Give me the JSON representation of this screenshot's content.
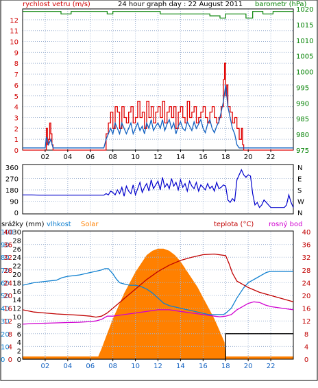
{
  "chart_data": [
    {
      "type": "line",
      "title": "24 hour graph day : 22 August 2011",
      "left_label": "rychlost vetru (m/s)",
      "right_label": "barometr (hPa)",
      "ylim_left": [
        0,
        13
      ],
      "ylim_right": [
        975,
        1020
      ],
      "yticks_left": [
        "0",
        "1",
        "2",
        "3",
        "4",
        "5",
        "6",
        "7",
        "8",
        "9",
        "10",
        "11",
        "12"
      ],
      "yticks_right": [
        "975",
        "980",
        "985",
        "990",
        "995",
        "1000",
        "1005",
        "1010",
        "1015",
        "1020"
      ],
      "x_ticks": [
        "02",
        "04",
        "06",
        "08",
        "10",
        "12",
        "14",
        "16",
        "18",
        "20",
        "22"
      ],
      "series": [
        {
          "color": "#008000",
          "x": [
            0,
            3.2,
            3.4,
            4.1,
            4.3,
            7.4,
            7.5,
            7.9,
            8.0,
            12.0,
            12.2,
            13.0,
            13.2,
            16.4,
            16.6,
            17.3,
            17.5,
            17.8,
            18.0,
            19.7,
            19.8,
            20.2,
            20.4,
            21.1,
            21.3,
            22.0,
            22.2,
            24
          ],
          "y": [
            1019.2,
            1019.2,
            1018.4,
            1018.4,
            1019.2,
            1019.2,
            1018.4,
            1018.4,
            1019.2,
            1019.2,
            1018.4,
            1018.4,
            1018.4,
            1018.4,
            1017.8,
            1017.8,
            1017.1,
            1017.1,
            1018.4,
            1018.4,
            1017.1,
            1017.1,
            1019.2,
            1019.2,
            1018.4,
            1018.4,
            1019.2,
            1019.2
          ]
        },
        {
          "color": "#e00000",
          "x": [
            0,
            2.0,
            2.1,
            2.2,
            2.3,
            2.4,
            2.5,
            2.6,
            2.7,
            7.2,
            7.4,
            7.6,
            7.8,
            8.0,
            8.2,
            8.4,
            8.6,
            8.8,
            9.0,
            9.2,
            9.4,
            9.6,
            9.8,
            10.0,
            10.2,
            10.4,
            10.6,
            10.8,
            11.0,
            11.2,
            11.4,
            11.6,
            11.8,
            12.0,
            12.2,
            12.4,
            12.6,
            12.8,
            13.0,
            13.2,
            13.4,
            13.6,
            13.8,
            14.0,
            14.2,
            14.4,
            14.6,
            14.8,
            15.0,
            15.2,
            15.4,
            15.6,
            15.8,
            16.0,
            16.2,
            16.4,
            16.6,
            16.8,
            17.0,
            17.2,
            17.4,
            17.6,
            17.8,
            17.9,
            18.0,
            18.1,
            18.2,
            18.4,
            18.6,
            18.8,
            19.0,
            19.2,
            19.4,
            19.5,
            19.6,
            24
          ],
          "y": [
            0,
            0,
            2.0,
            0.5,
            1.0,
            2.5,
            1.5,
            0.5,
            0,
            0,
            1.5,
            2.5,
            3.5,
            2.0,
            4.0,
            3.5,
            2.0,
            4.0,
            3.0,
            2.5,
            3.5,
            4.0,
            2.5,
            3.0,
            4.5,
            3.0,
            3.5,
            2.0,
            4.5,
            3.0,
            4.0,
            2.5,
            3.5,
            4.0,
            3.0,
            4.5,
            2.5,
            3.5,
            4.0,
            3.0,
            4.0,
            2.0,
            3.5,
            4.0,
            3.0,
            2.5,
            4.5,
            3.0,
            3.5,
            4.0,
            2.5,
            3.0,
            3.5,
            4.0,
            3.0,
            2.5,
            3.5,
            4.0,
            3.0,
            2.5,
            3.0,
            4.0,
            6.5,
            8.0,
            5.0,
            6.0,
            4.0,
            3.5,
            2.5,
            3.0,
            2.0,
            1.0,
            2.0,
            0.5,
            0,
            0
          ]
        },
        {
          "color": "#1060c0",
          "x": [
            0,
            2.0,
            2.1,
            2.3,
            2.5,
            2.7,
            7.2,
            7.4,
            7.6,
            7.8,
            8.0,
            8.2,
            8.4,
            8.6,
            8.8,
            9.0,
            9.2,
            9.4,
            9.6,
            9.8,
            10.0,
            10.2,
            10.4,
            10.6,
            10.8,
            11.0,
            11.2,
            11.4,
            11.6,
            11.8,
            12.0,
            12.2,
            12.4,
            12.6,
            12.8,
            13.0,
            13.2,
            13.4,
            13.6,
            13.8,
            14.0,
            14.2,
            14.4,
            14.6,
            14.8,
            15.0,
            15.2,
            15.4,
            15.6,
            15.8,
            16.0,
            16.2,
            16.4,
            16.6,
            16.8,
            17.0,
            17.2,
            17.4,
            17.6,
            17.8,
            18.0,
            18.2,
            18.4,
            18.6,
            18.8,
            19.0,
            19.2,
            19.4,
            19.6,
            24
          ],
          "y": [
            0.2,
            0.2,
            1.2,
            0.5,
            1.0,
            0.2,
            0.2,
            1.0,
            1.5,
            2.0,
            1.5,
            2.5,
            2.0,
            1.5,
            2.5,
            2.0,
            1.5,
            2.0,
            2.5,
            1.5,
            2.0,
            2.5,
            1.8,
            2.2,
            1.5,
            2.5,
            2.0,
            2.8,
            1.8,
            2.2,
            2.5,
            2.0,
            2.8,
            1.8,
            2.4,
            2.8,
            2.0,
            2.5,
            1.5,
            2.2,
            2.6,
            2.0,
            1.8,
            2.6,
            2.2,
            1.8,
            2.6,
            2.0,
            2.4,
            2.8,
            2.0,
            1.6,
            2.4,
            2.8,
            2.0,
            1.6,
            2.2,
            2.6,
            3.5,
            4.5,
            6.0,
            4.0,
            3.0,
            2.0,
            1.5,
            0.5,
            0.2,
            0.2,
            0.2,
            0.2
          ]
        }
      ]
    },
    {
      "type": "line",
      "ylim": [
        0,
        360
      ],
      "yticks_left": [
        "0",
        "90",
        "180",
        "270",
        "360"
      ],
      "yticks_right": [
        "N",
        "W",
        "S",
        "E",
        "N"
      ],
      "x_ticks": [
        "02",
        "04",
        "06",
        "08",
        "10",
        "12",
        "14",
        "16",
        "18",
        "20",
        "22"
      ],
      "series": [
        {
          "color": "#0000cc",
          "x": [
            0,
            0.8,
            1.5,
            2.5,
            3.5,
            7.2,
            7.4,
            7.6,
            7.8,
            8.0,
            8.2,
            8.4,
            8.6,
            8.8,
            9.0,
            9.2,
            9.4,
            9.6,
            9.8,
            10.0,
            10.2,
            10.4,
            10.6,
            10.8,
            11.0,
            11.2,
            11.4,
            11.6,
            11.8,
            12.0,
            12.2,
            12.4,
            12.6,
            12.8,
            13.0,
            13.2,
            13.4,
            13.6,
            13.8,
            14.0,
            14.2,
            14.4,
            14.6,
            14.8,
            15.0,
            15.2,
            15.4,
            15.6,
            15.8,
            16.0,
            16.2,
            16.4,
            16.6,
            16.8,
            17.0,
            17.2,
            17.4,
            17.6,
            17.8,
            18.0,
            18.2,
            18.4,
            18.6,
            18.8,
            19.0,
            19.2,
            19.4,
            19.6,
            19.8,
            20.0,
            20.2,
            20.4,
            20.6,
            20.8,
            21.0,
            21.2,
            21.4,
            21.6,
            21.8,
            22.0,
            22.2,
            22.4,
            22.6,
            22.8,
            23.0,
            23.2,
            23.4,
            23.6,
            23.8,
            24.0
          ],
          "y": [
            140,
            140,
            138,
            138,
            138,
            138,
            150,
            140,
            170,
            160,
            140,
            180,
            150,
            200,
            130,
            210,
            170,
            150,
            220,
            140,
            190,
            240,
            160,
            200,
            230,
            170,
            260,
            190,
            220,
            250,
            180,
            280,
            200,
            230,
            190,
            270,
            210,
            240,
            180,
            260,
            200,
            230,
            170,
            250,
            210,
            190,
            240,
            170,
            220,
            200,
            180,
            230,
            190,
            210,
            170,
            240,
            190,
            200,
            220,
            210,
            100,
            80,
            110,
            90,
            260,
            300,
            340,
            300,
            280,
            300,
            290,
            150,
            60,
            80,
            40,
            60,
            100,
            80,
            60,
            40,
            40,
            40,
            40,
            40,
            40,
            40,
            60,
            140,
            80,
            40
          ]
        }
      ]
    },
    {
      "type": "area",
      "left_labels": [
        "srážky (mm)",
        "vlhkost",
        "Solar"
      ],
      "right_labels": [
        "teplota (°C)",
        "rosný bod"
      ],
      "yticks_rain": [
        "0",
        "2",
        "4",
        "6",
        "8",
        "10",
        "12",
        "14",
        "16",
        "18",
        "20",
        "22",
        "24",
        "26",
        "28",
        "30"
      ],
      "yticks_humidity": [
        "0",
        "10",
        "20",
        "30",
        "40",
        "50",
        "60",
        "70",
        "80",
        "90",
        "100"
      ],
      "yticks_temp_left": [
        "0",
        "4",
        "8",
        "12",
        "16",
        "20",
        "24",
        "28",
        "32",
        "36",
        "40"
      ],
      "yticks_temp_right": [
        "0",
        "4",
        "8",
        "12",
        "16",
        "20",
        "24",
        "28",
        "32",
        "36",
        "40"
      ],
      "x_ticks": [
        "02",
        "04",
        "06",
        "08",
        "10",
        "12",
        "14",
        "16",
        "18",
        "20",
        "22"
      ],
      "series": [
        {
          "name": "Solar",
          "color": "#ff8000",
          "x": [
            0,
            6.6,
            7.0,
            7.5,
            8.0,
            8.5,
            9.0,
            9.5,
            10.0,
            10.5,
            11.0,
            11.5,
            12.0,
            12.5,
            13.0,
            13.5,
            14.0,
            14.5,
            15.0,
            15.5,
            16.0,
            16.5,
            17.0,
            17.5,
            17.9,
            18.0,
            24
          ],
          "y": [
            0,
            0,
            2.5,
            6.0,
            9.5,
            12.5,
            15.5,
            18.0,
            20.5,
            22.5,
            24.5,
            25.5,
            26.0,
            26.0,
            25.5,
            24.5,
            23.0,
            21.0,
            19.0,
            17.0,
            14.5,
            12.0,
            9.5,
            6.5,
            4.0,
            0,
            0
          ]
        },
        {
          "name": "vlhkost",
          "color": "#1080d0",
          "x": [
            0,
            0.5,
            1.0,
            2.0,
            3.0,
            3.5,
            4.0,
            5.0,
            5.5,
            6.0,
            6.5,
            7.0,
            7.3,
            7.6,
            8.0,
            8.3,
            8.6,
            9.0,
            9.5,
            10.0,
            10.5,
            11.0,
            11.5,
            12.0,
            12.5,
            13.0,
            13.5,
            14.0,
            14.5,
            15.0,
            15.5,
            16.0,
            16.5,
            17.0,
            17.5,
            17.8,
            18.0,
            18.5,
            19.0,
            19.3,
            19.6,
            20.0,
            20.4,
            20.8,
            21.2,
            21.6,
            22.0,
            23.0,
            24.0
          ],
          "y": [
            58,
            59,
            60,
            61,
            62,
            64,
            65,
            66,
            67,
            68,
            69,
            70,
            71,
            71,
            67,
            63,
            60,
            59,
            58,
            58,
            57,
            55,
            52,
            48,
            44,
            42,
            41,
            40,
            39,
            38,
            37,
            36,
            35,
            35,
            35,
            35,
            36,
            40,
            48,
            52,
            56,
            60,
            62,
            64,
            66,
            68,
            69,
            69,
            69
          ]
        },
        {
          "name": "teplota",
          "color": "#c00000",
          "x": [
            0,
            1,
            2,
            3,
            4,
            5,
            6,
            6.5,
            7,
            7.5,
            8,
            9,
            10,
            11,
            12,
            13,
            14,
            15,
            16,
            17,
            18,
            18.3,
            18.6,
            19,
            19.5,
            20,
            21,
            22,
            23,
            24
          ],
          "y": [
            15.5,
            14.8,
            14.5,
            14.2,
            14.0,
            13.8,
            13.5,
            13.2,
            13.5,
            14.5,
            16.0,
            19.0,
            22.0,
            25.0,
            27.5,
            29.5,
            31.0,
            32.0,
            32.8,
            33.0,
            32.5,
            30.0,
            27.0,
            24.5,
            23.5,
            22.5,
            21.0,
            20.0,
            19.0,
            18.0
          ]
        },
        {
          "name": "rosny bod",
          "color": "#d000d0",
          "x": [
            0,
            1,
            2,
            3,
            4,
            5,
            6,
            6.5,
            7,
            7.5,
            8,
            9,
            10,
            11,
            12,
            13,
            14,
            15,
            16,
            17,
            17.5,
            18,
            18.5,
            19,
            19.5,
            20,
            20.5,
            21,
            21.5,
            22,
            23,
            24
          ],
          "y": [
            11.0,
            11.2,
            11.3,
            11.4,
            11.5,
            11.6,
            11.8,
            12.0,
            12.5,
            13.5,
            13.5,
            14.0,
            14.5,
            15.0,
            15.5,
            15.5,
            15.0,
            14.5,
            14.0,
            13.5,
            13.3,
            13.5,
            14.0,
            15.5,
            16.5,
            17.5,
            18.0,
            17.8,
            17.0,
            16.5,
            16.0,
            15.5
          ]
        },
        {
          "name": "srazky",
          "color": "#000000",
          "x": [
            0,
            18.0,
            18.0,
            24.0
          ],
          "y": [
            0,
            0,
            6.0,
            6.0
          ]
        }
      ]
    }
  ]
}
